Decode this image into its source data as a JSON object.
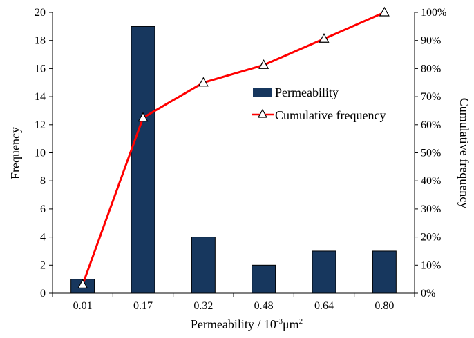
{
  "chart_data": {
    "type": "bar",
    "categories": [
      "0.01",
      "0.17",
      "0.32",
      "0.48",
      "0.64",
      "0.80"
    ],
    "series": [
      {
        "name": "Permeability",
        "type": "bar",
        "axis": "left",
        "values": [
          1,
          19,
          4,
          2,
          3,
          3
        ]
      },
      {
        "name": "Cumulative frequency",
        "type": "line",
        "axis": "right",
        "values": [
          3.1,
          62.5,
          75.0,
          81.25,
          90.6,
          100
        ]
      }
    ],
    "xlabel": {
      "text": "Permeability  / 10",
      "sup1": "-3",
      "mid": "μm",
      "sup2": "2"
    },
    "ylabel": "Frequency",
    "y2label": "Cumulative frequency",
    "ylim": [
      0,
      20
    ],
    "yticks": [
      0,
      2,
      4,
      6,
      8,
      10,
      12,
      14,
      16,
      18,
      20
    ],
    "y2lim": [
      0,
      100
    ],
    "y2ticks": [
      "0%",
      "10%",
      "20%",
      "30%",
      "40%",
      "50%",
      "60%",
      "70%",
      "80%",
      "90%",
      "100%"
    ],
    "grid": false,
    "legend_position": "center-right",
    "colors": {
      "bar": "#17375e",
      "line": "#ff0000",
      "marker_fill": "#ffffff",
      "marker_stroke": "#000000"
    }
  }
}
